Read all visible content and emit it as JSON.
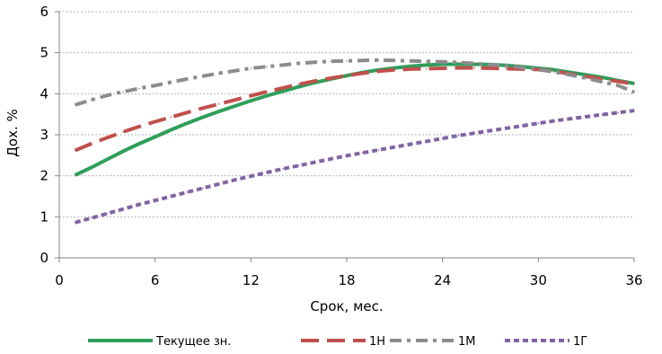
{
  "chart_data": {
    "type": "line",
    "xlabel": "Срок, мес.",
    "ylabel": "Дох. %",
    "xlim": [
      0,
      36
    ],
    "ylim": [
      0,
      6
    ],
    "x_ticks": [
      "0",
      "6",
      "12",
      "18",
      "24",
      "30",
      "36"
    ],
    "y_ticks": [
      "0",
      "1",
      "2",
      "3",
      "4",
      "5",
      "6"
    ],
    "grid": "horizontal",
    "legend_position": "bottom",
    "series": [
      {
        "name": "Текущее зн.",
        "color": "#2e9e5b",
        "style": "solid",
        "x": [
          1,
          2,
          3,
          4,
          5,
          6,
          7,
          8,
          9,
          10,
          11,
          12,
          13,
          14,
          15,
          16,
          17,
          18,
          19,
          20,
          21,
          22,
          23,
          24,
          25,
          26,
          27,
          28,
          29,
          30,
          31,
          32,
          33,
          34,
          35,
          36
        ],
        "y": [
          2.02,
          2.2,
          2.4,
          2.6,
          2.78,
          2.95,
          3.12,
          3.28,
          3.43,
          3.57,
          3.7,
          3.83,
          3.95,
          4.06,
          4.17,
          4.27,
          4.36,
          4.44,
          4.52,
          4.58,
          4.63,
          4.67,
          4.7,
          4.72,
          4.72,
          4.72,
          4.71,
          4.69,
          4.66,
          4.62,
          4.58,
          4.52,
          4.46,
          4.4,
          4.32,
          4.25
        ]
      },
      {
        "name": "1Н",
        "color": "#c0504d",
        "style": "longdash",
        "x": [
          1,
          2,
          3,
          4,
          5,
          6,
          7,
          8,
          9,
          10,
          11,
          12,
          13,
          14,
          15,
          16,
          17,
          18,
          19,
          20,
          21,
          22,
          23,
          24,
          25,
          26,
          27,
          28,
          29,
          30,
          31,
          32,
          33,
          34,
          35,
          36
        ],
        "y": [
          2.62,
          2.78,
          2.93,
          3.07,
          3.2,
          3.32,
          3.43,
          3.54,
          3.65,
          3.75,
          3.85,
          3.95,
          4.05,
          4.14,
          4.23,
          4.31,
          4.38,
          4.44,
          4.5,
          4.55,
          4.58,
          4.6,
          4.61,
          4.62,
          4.63,
          4.63,
          4.62,
          4.61,
          4.6,
          4.59,
          4.55,
          4.48,
          4.42,
          4.36,
          4.3,
          4.24
        ]
      },
      {
        "name": "1М",
        "color": "#8c8c8c",
        "style": "dashdot",
        "x": [
          1,
          2,
          3,
          4,
          5,
          6,
          7,
          8,
          9,
          10,
          11,
          12,
          13,
          14,
          15,
          16,
          17,
          18,
          19,
          20,
          21,
          22,
          23,
          24,
          25,
          26,
          27,
          28,
          29,
          30,
          31,
          32,
          33,
          34,
          35,
          36
        ],
        "y": [
          3.73,
          3.85,
          3.96,
          4.05,
          4.13,
          4.2,
          4.28,
          4.36,
          4.43,
          4.5,
          4.56,
          4.62,
          4.66,
          4.7,
          4.74,
          4.77,
          4.79,
          4.8,
          4.81,
          4.82,
          4.81,
          4.8,
          4.79,
          4.78,
          4.76,
          4.74,
          4.71,
          4.68,
          4.64,
          4.59,
          4.53,
          4.46,
          4.38,
          4.29,
          4.2,
          4.04
        ]
      },
      {
        "name": "1Г",
        "color": "#8064a2",
        "style": "shortdash",
        "x": [
          1,
          2,
          3,
          4,
          5,
          6,
          7,
          8,
          9,
          10,
          11,
          12,
          13,
          14,
          15,
          16,
          17,
          18,
          19,
          20,
          21,
          22,
          23,
          24,
          25,
          26,
          27,
          28,
          29,
          30,
          31,
          32,
          33,
          34,
          35,
          36
        ],
        "y": [
          0.86,
          0.97,
          1.08,
          1.19,
          1.3,
          1.4,
          1.5,
          1.6,
          1.7,
          1.8,
          1.9,
          1.99,
          2.08,
          2.17,
          2.25,
          2.33,
          2.41,
          2.49,
          2.56,
          2.63,
          2.7,
          2.77,
          2.84,
          2.91,
          2.98,
          3.04,
          3.1,
          3.16,
          3.22,
          3.28,
          3.34,
          3.39,
          3.44,
          3.49,
          3.54,
          3.59
        ]
      }
    ]
  }
}
